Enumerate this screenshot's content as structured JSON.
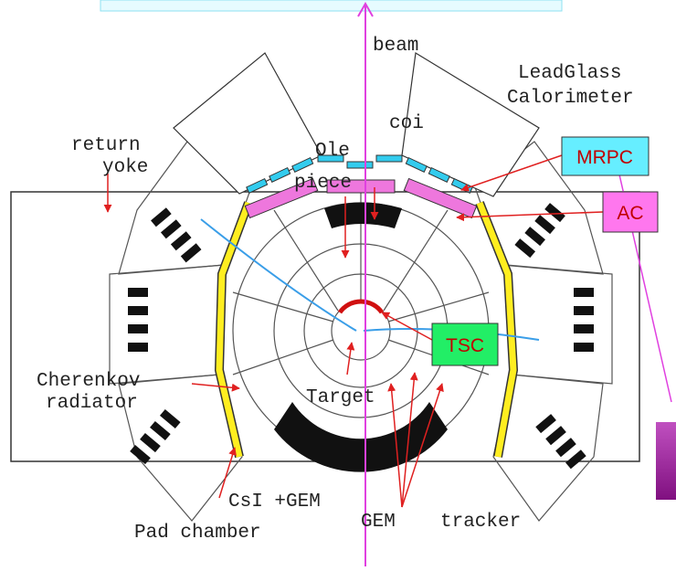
{
  "labels": {
    "beam": "beam",
    "leadglass": [
      "LeadGlass",
      "Calorimeter"
    ],
    "coil": "coi",
    "pole_piece": [
      "Ole",
      "piece"
    ],
    "return_yoke": [
      "return",
      "yoke"
    ],
    "cherenkov": [
      "Cherenkov",
      "radiator"
    ],
    "target": "Target",
    "csi_gem": "CsI +GEM",
    "pad_chamber": "Pad chamber",
    "gem": "GEM",
    "tracker": "tracker"
  },
  "callouts": {
    "mrpc": "MRPC",
    "ac": "AC",
    "tsc": "TSC"
  }
}
